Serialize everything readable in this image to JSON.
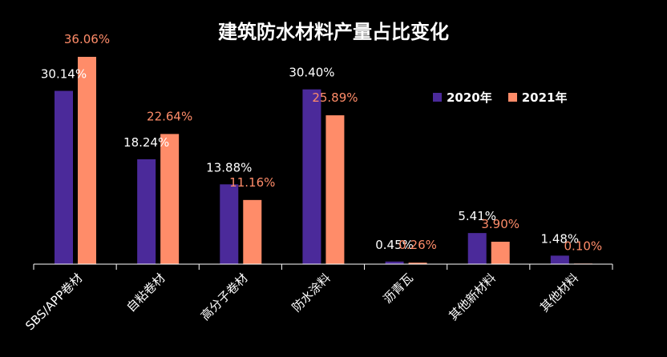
{
  "colors": {
    "s2020": "#4B2A9A",
    "s2021": "#FF8C69",
    "label2020": "#FFFFFF",
    "label2021": "#FF8C69",
    "axis": "#FFFFFF",
    "background": "#000000"
  },
  "chart_data": {
    "type": "bar",
    "title": "建筑防水材料产量占比变化",
    "categories": [
      "SBS/APP卷材",
      "自粘卷材",
      "高分子卷材",
      "防水涂料",
      "沥青瓦",
      "其他新材料",
      "其他材料"
    ],
    "series": [
      {
        "name": "2020年",
        "values": [
          30.14,
          18.24,
          13.88,
          30.4,
          0.45,
          5.41,
          1.48
        ],
        "labels": [
          "30.14%",
          "18.24%",
          "13.88%",
          "30.40%",
          "0.45%",
          "5.41%",
          "1.48%"
        ]
      },
      {
        "name": "2021年",
        "values": [
          36.06,
          22.64,
          11.16,
          25.89,
          0.26,
          3.9,
          0.1
        ],
        "labels": [
          "36.06%",
          "22.64%",
          "11.16%",
          "25.89%",
          "0.26%",
          "3.90%",
          "0.10%"
        ]
      }
    ],
    "xlabel": "",
    "ylabel": "",
    "ylim": [
      0,
      36.06
    ],
    "legend_position": "top-right",
    "grid": false
  }
}
